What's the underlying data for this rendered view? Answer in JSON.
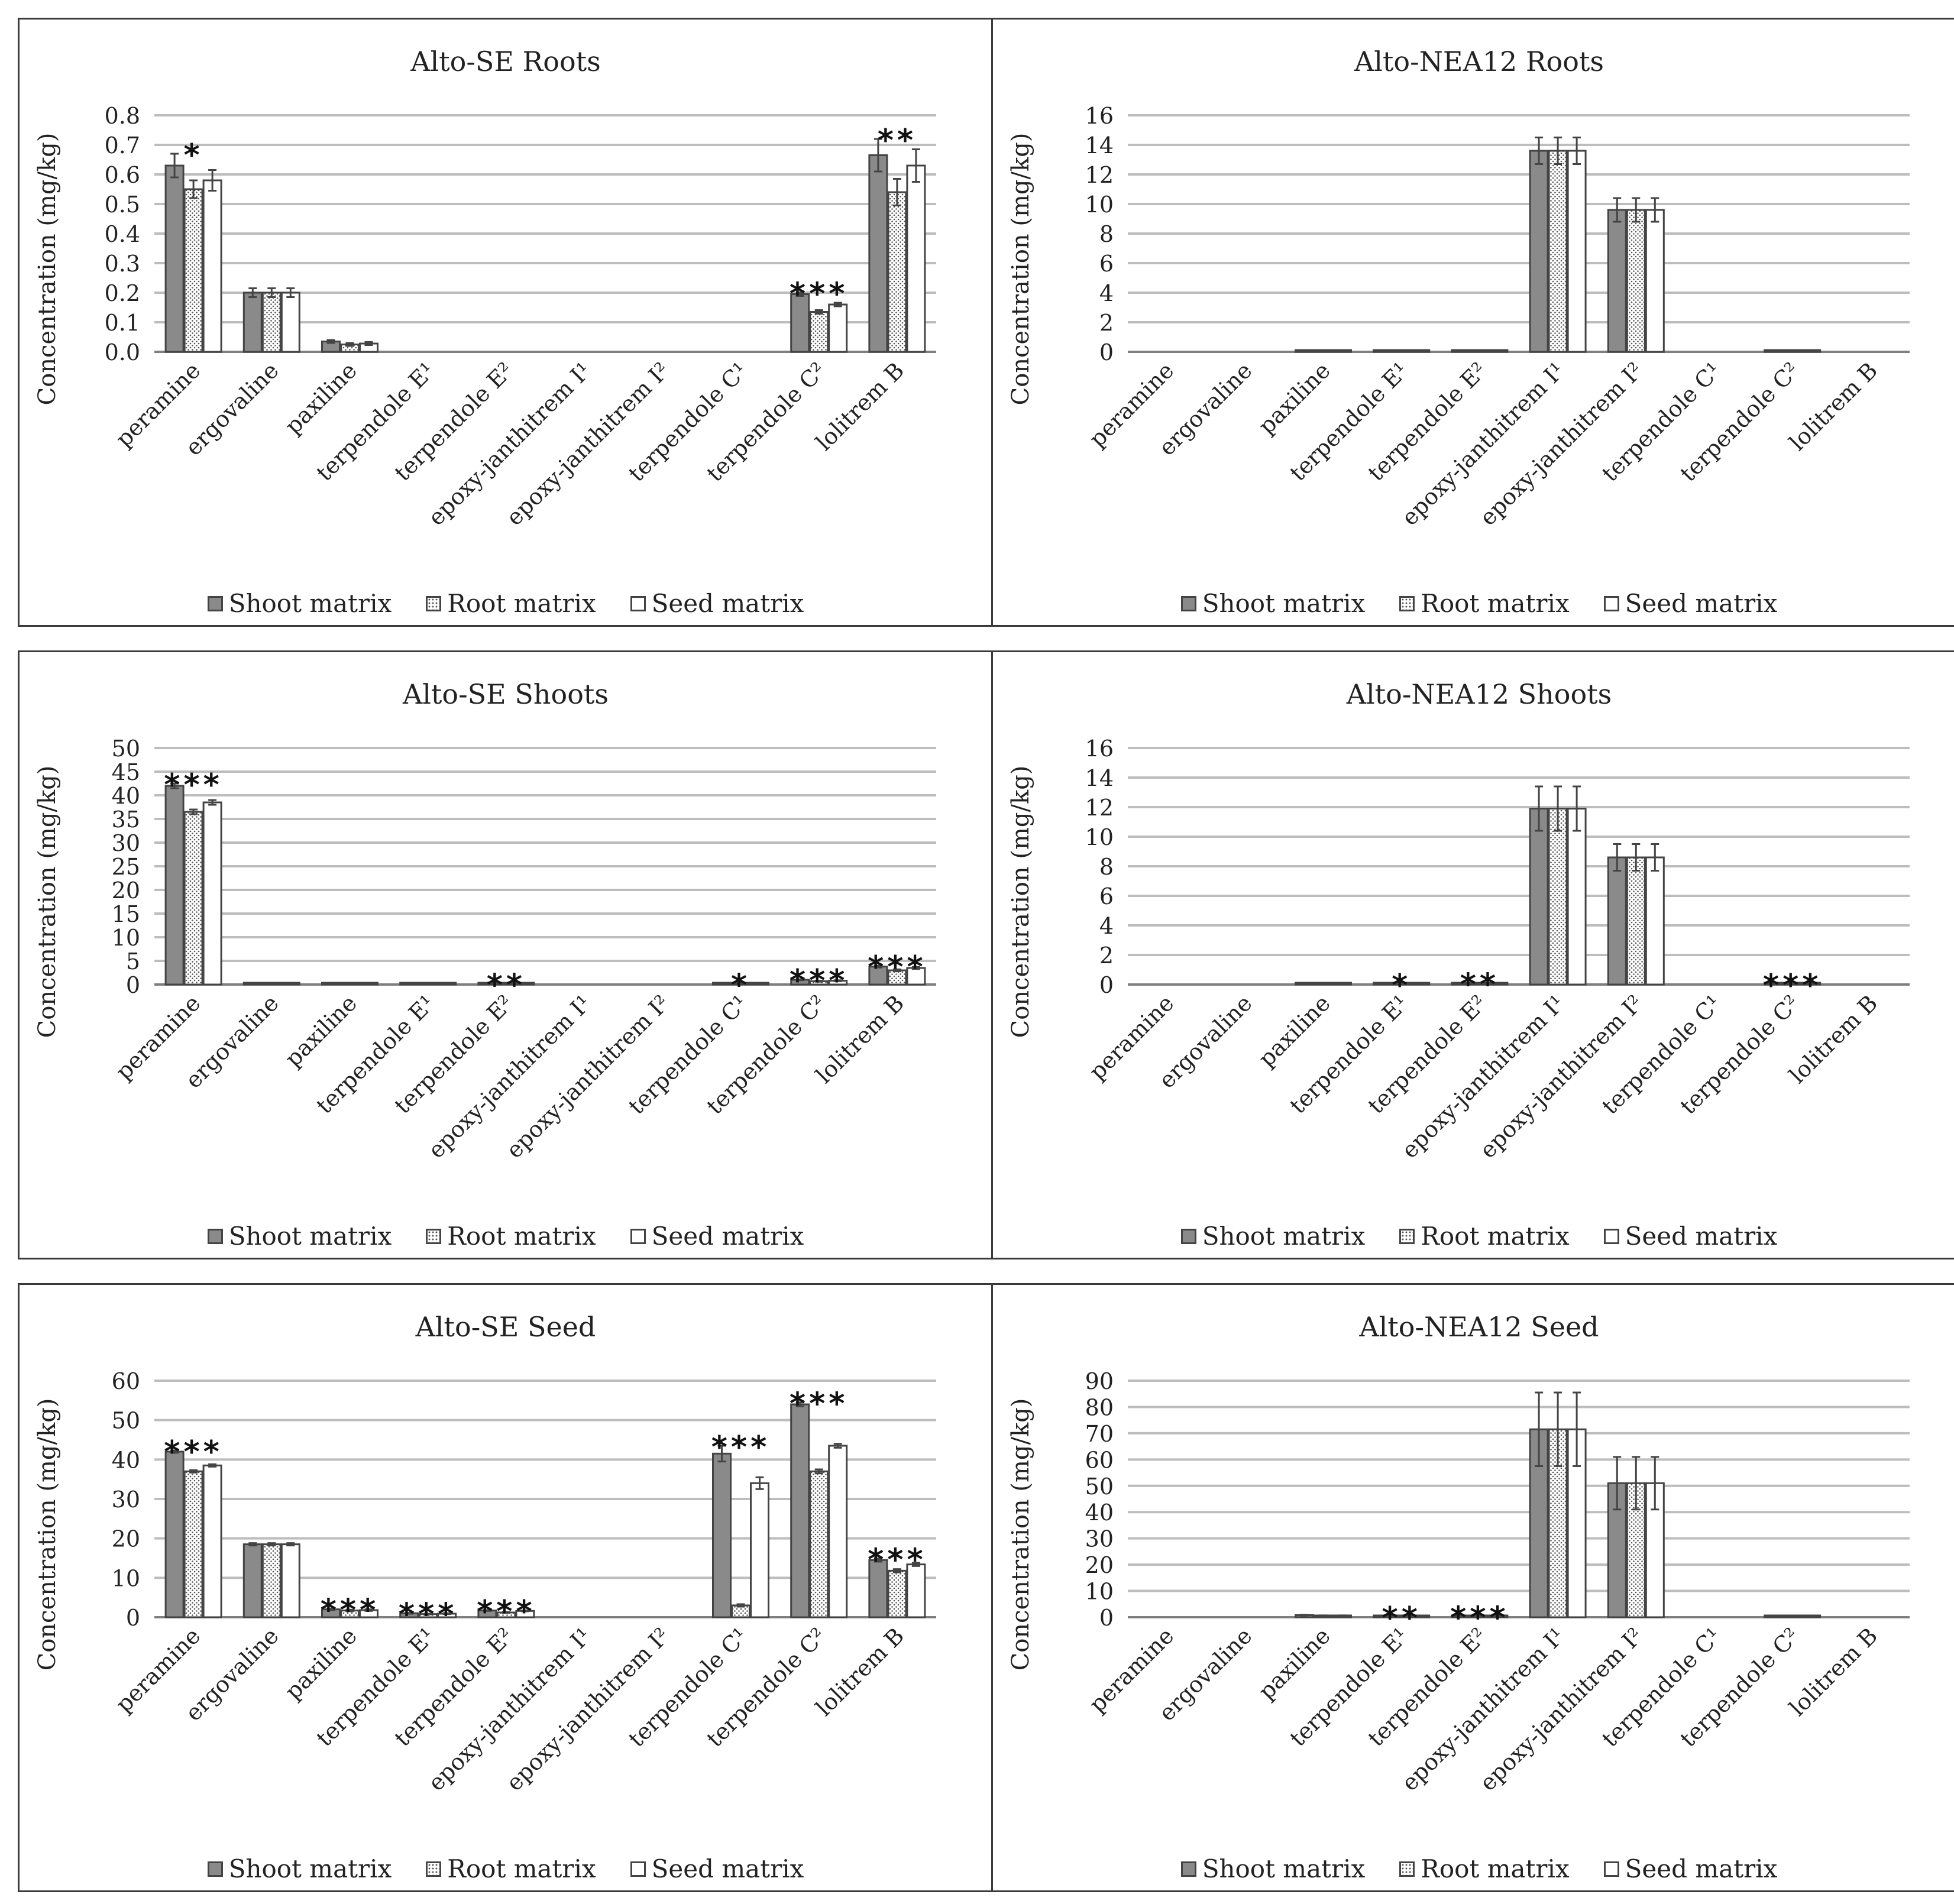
{
  "legend": [
    "Shoot matrix",
    "Root matrix",
    "Seed matrix"
  ],
  "colors": {
    "shoot": "#8a8a8a",
    "root_dots": "#555555",
    "seed": "#ffffff",
    "axis": "#7f7f7f",
    "grid": "#bdbdbd",
    "border": "#3a3a3a"
  },
  "chart_data": [
    {
      "type": "bar",
      "title": "Alto-SE Roots",
      "ylabel": "Concentration (mg/kg)",
      "xlabel": "",
      "ylim": [
        0,
        0.8
      ],
      "yticks": [
        "0.0",
        "0.1",
        "0.2",
        "0.3",
        "0.4",
        "0.5",
        "0.6",
        "0.7",
        "0.8"
      ],
      "categories": [
        "peramine",
        "ergovaline",
        "paxiline",
        "terpendole E¹",
        "terpendole E²",
        "epoxy-janthitrem I¹",
        "epoxy-janthitrem I²",
        "terpendole C¹",
        "terpendole C²",
        "lolitrem  B"
      ],
      "series": [
        {
          "name": "Shoot matrix",
          "values": [
            0.63,
            0.2,
            0.035,
            0,
            0,
            0,
            0,
            0,
            0.195,
            0.665
          ],
          "errors": [
            0.04,
            0.015,
            0.005,
            0,
            0,
            0,
            0,
            0,
            0.006,
            0.055
          ]
        },
        {
          "name": "Root matrix",
          "values": [
            0.55,
            0.2,
            0.025,
            0,
            0,
            0,
            0,
            0,
            0.135,
            0.54
          ],
          "errors": [
            0.03,
            0.015,
            0.005,
            0,
            0,
            0,
            0,
            0,
            0.006,
            0.045
          ]
        },
        {
          "name": "Seed matrix",
          "values": [
            0.58,
            0.2,
            0.028,
            0,
            0,
            0,
            0,
            0,
            0.16,
            0.63
          ],
          "errors": [
            0.035,
            0.015,
            0.005,
            0,
            0,
            0,
            0,
            0,
            0.006,
            0.055
          ]
        }
      ],
      "significance": [
        "*",
        "",
        "",
        "",
        "",
        "",
        "",
        "",
        "***",
        "**"
      ]
    },
    {
      "type": "bar",
      "title": "Alto-NEA12 Roots",
      "ylabel": "Concentration (mg/kg)",
      "xlabel": "",
      "ylim": [
        0,
        16
      ],
      "yticks": [
        "0",
        "2",
        "4",
        "6",
        "8",
        "10",
        "12",
        "14",
        "16"
      ],
      "categories": [
        "peramine",
        "ergovaline",
        "paxiline",
        "terpendole E¹",
        "terpendole E²",
        "epoxy-janthitrem I¹",
        "epoxy-janthitrem I²",
        "terpendole C¹",
        "terpendole C²",
        "lolitrem  B"
      ],
      "series": [
        {
          "name": "Shoot matrix",
          "values": [
            0,
            0,
            0.05,
            0.05,
            0.05,
            13.6,
            9.6,
            0,
            0.05,
            0
          ],
          "errors": [
            0,
            0,
            0,
            0,
            0,
            0.9,
            0.8,
            0,
            0,
            0
          ]
        },
        {
          "name": "Root matrix",
          "values": [
            0,
            0,
            0.05,
            0.05,
            0.05,
            13.6,
            9.6,
            0,
            0.05,
            0
          ],
          "errors": [
            0,
            0,
            0,
            0,
            0,
            0.9,
            0.8,
            0,
            0,
            0
          ]
        },
        {
          "name": "Seed matrix",
          "values": [
            0,
            0,
            0.05,
            0.05,
            0.05,
            13.6,
            9.6,
            0,
            0.05,
            0
          ],
          "errors": [
            0,
            0,
            0,
            0,
            0,
            0.9,
            0.8,
            0,
            0,
            0
          ]
        }
      ],
      "significance": [
        "",
        "",
        "",
        "",
        "",
        "",
        "",
        "",
        "",
        ""
      ]
    },
    {
      "type": "bar",
      "title": "Alto-SE Shoots",
      "ylabel": "Concentration (mg/kg)",
      "xlabel": "",
      "ylim": [
        0,
        50
      ],
      "yticks": [
        "0",
        "5",
        "10",
        "15",
        "20",
        "25",
        "30",
        "35",
        "40",
        "45",
        "50"
      ],
      "categories": [
        "peramine",
        "ergovaline",
        "paxiline",
        "terpendole E¹",
        "terpendole E²",
        "epoxy-janthitrem I¹",
        "epoxy-janthitrem I²",
        "terpendole C¹",
        "terpendole C²",
        "lolitrem  B"
      ],
      "series": [
        {
          "name": "Shoot matrix",
          "values": [
            42.0,
            0.2,
            0.2,
            0.2,
            0.2,
            0,
            0,
            0.2,
            1.0,
            3.8
          ],
          "errors": [
            0.5,
            0,
            0,
            0,
            0,
            0,
            0,
            0,
            0.1,
            0.2
          ]
        },
        {
          "name": "Root matrix",
          "values": [
            36.5,
            0.2,
            0.2,
            0.2,
            0.2,
            0,
            0,
            0.2,
            0.7,
            3.0
          ],
          "errors": [
            0.5,
            0,
            0,
            0,
            0,
            0,
            0,
            0,
            0.1,
            0.2
          ]
        },
        {
          "name": "Seed matrix",
          "values": [
            38.5,
            0.2,
            0.2,
            0.2,
            0.2,
            0,
            0,
            0.2,
            0.8,
            3.5
          ],
          "errors": [
            0.5,
            0,
            0,
            0,
            0,
            0,
            0,
            0,
            0.1,
            0.2
          ]
        }
      ],
      "significance": [
        "***",
        "",
        "",
        "",
        "**",
        "",
        "",
        "*",
        "***",
        "***"
      ]
    },
    {
      "type": "bar",
      "title": "Alto-NEA12 Shoots",
      "ylabel": "Concentration (mg/kg)",
      "xlabel": "",
      "ylim": [
        0,
        16
      ],
      "yticks": [
        "0",
        "2",
        "4",
        "6",
        "8",
        "10",
        "12",
        "14",
        "16"
      ],
      "categories": [
        "peramine",
        "ergovaline",
        "paxiline",
        "terpendole E¹",
        "terpendole E²",
        "epoxy-janthitrem I¹",
        "epoxy-janthitrem I²",
        "terpendole C¹",
        "terpendole C²",
        "lolitrem  B"
      ],
      "series": [
        {
          "name": "Shoot matrix",
          "values": [
            0,
            0,
            0.05,
            0.05,
            0.1,
            11.9,
            8.6,
            0,
            0.05,
            0
          ],
          "errors": [
            0,
            0,
            0,
            0,
            0,
            1.5,
            0.9,
            0,
            0,
            0
          ]
        },
        {
          "name": "Root matrix",
          "values": [
            0,
            0,
            0.05,
            0.05,
            0.1,
            11.9,
            8.6,
            0,
            0.05,
            0
          ],
          "errors": [
            0,
            0,
            0,
            0,
            0,
            1.5,
            0.9,
            0,
            0,
            0
          ]
        },
        {
          "name": "Seed matrix",
          "values": [
            0,
            0,
            0.05,
            0.05,
            0.1,
            11.9,
            8.6,
            0,
            0.05,
            0
          ],
          "errors": [
            0,
            0,
            0,
            0,
            0,
            1.5,
            0.9,
            0,
            0,
            0
          ]
        }
      ],
      "significance": [
        "",
        "",
        "",
        "*",
        "**",
        "",
        "",
        "",
        "***",
        ""
      ]
    },
    {
      "type": "bar",
      "title": "Alto-SE Seed",
      "ylabel": "Concentration (mg/kg)",
      "xlabel": "",
      "ylim": [
        0,
        60
      ],
      "yticks": [
        "0",
        "10",
        "20",
        "30",
        "40",
        "50",
        "60"
      ],
      "categories": [
        "peramine",
        "ergovaline",
        "paxiline",
        "terpendole E¹",
        "terpendole E²",
        "epoxy-janthitrem I¹",
        "epoxy-janthitrem I²",
        "terpendole C¹",
        "terpendole C²",
        "lolitrem  B"
      ],
      "series": [
        {
          "name": "Shoot matrix",
          "values": [
            42.0,
            18.5,
            2.0,
            1.0,
            1.7,
            0,
            0,
            41.5,
            54.0,
            14.5
          ],
          "errors": [
            0.3,
            0.3,
            0.2,
            0.1,
            0.1,
            0,
            0,
            2.0,
            0.5,
            0.4
          ]
        },
        {
          "name": "Root matrix",
          "values": [
            37.0,
            18.5,
            1.7,
            0.8,
            1.2,
            0,
            0,
            3.0,
            37.0,
            11.8
          ],
          "errors": [
            0.3,
            0.3,
            0.2,
            0.1,
            0.1,
            0,
            0,
            0.3,
            0.5,
            0.4
          ]
        },
        {
          "name": "Seed matrix",
          "values": [
            38.5,
            18.5,
            1.8,
            0.9,
            1.6,
            0,
            0,
            34.0,
            43.5,
            13.4
          ],
          "errors": [
            0.3,
            0.3,
            0.2,
            0.1,
            0.1,
            0,
            0,
            1.5,
            0.5,
            0.4
          ]
        }
      ],
      "significance": [
        "***",
        "",
        "***",
        "***",
        "***",
        "",
        "",
        "***",
        "***",
        "***"
      ]
    },
    {
      "type": "bar",
      "title": "Alto-NEA12 Seed",
      "ylabel": "Concentration (mg/kg)",
      "xlabel": "",
      "ylim": [
        0,
        90
      ],
      "yticks": [
        "0",
        "10",
        "20",
        "30",
        "40",
        "50",
        "60",
        "70",
        "80",
        "90"
      ],
      "categories": [
        "peramine",
        "ergovaline",
        "paxiline",
        "terpendole E¹",
        "terpendole E²",
        "epoxy-janthitrem I¹",
        "epoxy-janthitrem I²",
        "terpendole C¹",
        "terpendole C²",
        "lolitrem  B"
      ],
      "series": [
        {
          "name": "Shoot matrix",
          "values": [
            0,
            0,
            0.8,
            0.2,
            0.3,
            71.5,
            51.0,
            0,
            0.4,
            0
          ],
          "errors": [
            0,
            0,
            0.1,
            0,
            0,
            14.0,
            10.0,
            0,
            0,
            0
          ]
        },
        {
          "name": "Root matrix",
          "values": [
            0,
            0,
            0.6,
            0.2,
            0.3,
            71.5,
            51.0,
            0,
            0.3,
            0
          ],
          "errors": [
            0,
            0,
            0.1,
            0,
            0,
            14.0,
            10.0,
            0,
            0,
            0
          ]
        },
        {
          "name": "Seed matrix",
          "values": [
            0,
            0,
            0.6,
            0.2,
            0.3,
            71.5,
            51.0,
            0,
            0.3,
            0
          ],
          "errors": [
            0,
            0,
            0.1,
            0,
            0,
            14.0,
            10.0,
            0,
            0,
            0
          ]
        }
      ],
      "significance": [
        "",
        "",
        "",
        "**",
        "***",
        "",
        "",
        "",
        "",
        ""
      ]
    }
  ]
}
